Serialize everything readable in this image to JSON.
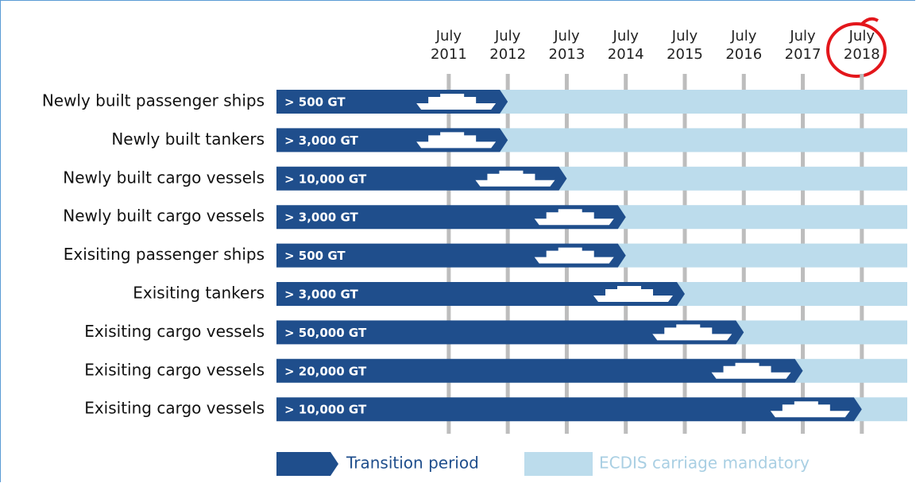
{
  "chart_data": {
    "type": "timeline",
    "categories": [
      "Newly built passenger ships",
      "Newly built tankers",
      "Newly built cargo vessels",
      "Newly built cargo vessels",
      "Exisiting passenger ships",
      "Exisiting tankers",
      "Exisiting cargo vessels",
      "Exisiting cargo vessels",
      "Exisiting cargo vessels"
    ],
    "bar_labels": [
      "> 500 GT",
      "> 3,000 GT",
      "> 10,000 GT",
      "> 3,000 GT",
      "> 500 GT",
      "> 3,000 GT",
      "> 50,000 GT",
      "> 20,000 GT",
      "> 10,000 GT"
    ],
    "series": [
      {
        "name": "Transition period",
        "color": "#1f4e8c",
        "values": [
          2012.5,
          2012.5,
          2013.5,
          2014.5,
          2014.5,
          2015.5,
          2016.5,
          2017.5,
          2018.5
        ]
      },
      {
        "name": "ECDIS carriage mandatory",
        "color": "#bcdcec"
      }
    ],
    "xlim": [
      2008.58,
      2019.27
    ],
    "xticks": [
      {
        "value": 2011.5,
        "label": "July 2011"
      },
      {
        "value": 2012.5,
        "label": "July 2012"
      },
      {
        "value": 2013.5,
        "label": "July 2013"
      },
      {
        "value": 2014.5,
        "label": "July 2014"
      },
      {
        "value": 2015.5,
        "label": "July 2015"
      },
      {
        "value": 2016.5,
        "label": "July 2016"
      },
      {
        "value": 2017.5,
        "label": "July 2017"
      },
      {
        "value": 2018.5,
        "label": "July 2018"
      }
    ],
    "grid": true,
    "legend": "bottom"
  }
}
